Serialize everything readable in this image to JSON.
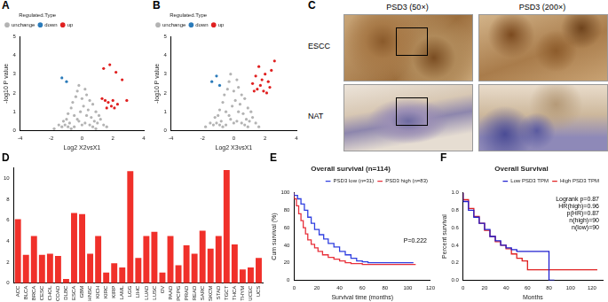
{
  "chart_data": [
    {
      "panel": "A",
      "type": "scatter",
      "x_label": "Log2 X2vsX1",
      "y_label": "-log10 P value",
      "legend": "top-left",
      "legend_title": "Regulated.Type",
      "grid": false,
      "xlim": [
        -4,
        4
      ],
      "xticks": [
        -4,
        -2,
        0,
        2,
        4
      ],
      "ylim": [
        0,
        5
      ],
      "yticks": [
        0,
        1,
        2,
        3,
        4,
        5
      ],
      "series": [
        {
          "name": "unchange",
          "color": "#b3b3b3",
          "x": [
            -1.8,
            -1.5,
            -1.3,
            -1.2,
            -1.0,
            -0.9,
            -0.8,
            -0.7,
            -0.6,
            -0.5,
            -0.4,
            -0.3,
            -0.2,
            -0.1,
            0,
            0.1,
            0.2,
            0.3,
            0.4,
            0.5,
            0.6,
            0.7,
            0.8,
            0.9,
            1.0,
            1.2,
            1.4,
            1.6,
            -0.5,
            -0.2,
            0.2,
            0.5,
            -0.9,
            0.9,
            -0.3,
            0.3,
            0,
            -1.1,
            1.1,
            -0.7,
            0.7
          ],
          "values": [
            0.1,
            0.3,
            0.2,
            0.5,
            0.6,
            0.9,
            0.4,
            1.2,
            1.5,
            0.8,
            1.8,
            2.1,
            2.4,
            1.0,
            0.3,
            1.3,
            2.2,
            1.9,
            1.1,
            1.6,
            0.7,
            1.4,
            0.5,
            1.0,
            0.4,
            0.6,
            0.3,
            0.2,
            0.2,
            0.5,
            0.4,
            0.3,
            0.2,
            0.1,
            0.6,
            0.8,
            1.7,
            0.3,
            0.8,
            0.1,
            0.2
          ]
        },
        {
          "name": "down",
          "color": "#2b7bba",
          "x": [
            -1.3,
            -1.0
          ],
          "values": [
            2.8,
            2.6
          ]
        },
        {
          "name": "up",
          "color": "#e02020",
          "x": [
            1.4,
            1.8,
            2.2,
            2.6,
            1.5,
            1.7,
            2.0,
            2.3,
            1.6,
            1.9,
            2.1,
            1.3,
            2.9
          ],
          "values": [
            3.3,
            3.5,
            3.1,
            2.7,
            1.6,
            1.5,
            1.6,
            1.4,
            1.2,
            1.3,
            1.2,
            1.7,
            1.6
          ]
        }
      ]
    },
    {
      "panel": "B",
      "type": "scatter",
      "x_label": "Log2 X3vsX1",
      "y_label": "-log10 P value",
      "legend": "top-left",
      "legend_title": "Regulated.Type",
      "grid": false,
      "xlim": [
        -4,
        4
      ],
      "xticks": [
        -4,
        -2,
        0,
        2,
        4
      ],
      "ylim": [
        0,
        5
      ],
      "yticks": [
        0,
        1,
        2,
        3,
        4,
        5
      ],
      "series": [
        {
          "name": "unchange",
          "color": "#b3b3b3",
          "x": [
            -1.8,
            -1.5,
            -1.3,
            -1.2,
            -1.0,
            -0.9,
            -0.8,
            -0.7,
            -0.6,
            -0.5,
            -0.4,
            -0.3,
            -0.2,
            -0.1,
            0,
            0.1,
            0.2,
            0.3,
            0.4,
            0.5,
            0.6,
            0.7,
            0.8,
            0.9,
            1.0,
            1.2,
            1.4,
            1.6,
            -0.5,
            -0.2,
            0.2,
            0.5,
            -0.9,
            0.9,
            -0.3,
            0.3,
            0,
            -1.1,
            1.1,
            -0.7,
            0.7
          ],
          "values": [
            0.2,
            0.4,
            0.3,
            0.7,
            0.8,
            1.1,
            0.5,
            1.5,
            1.9,
            1.0,
            2.2,
            2.6,
            3.0,
            1.3,
            0.4,
            1.6,
            2.7,
            2.3,
            1.4,
            1.9,
            0.9,
            1.7,
            0.6,
            1.2,
            0.5,
            0.7,
            0.4,
            0.2,
            0.3,
            0.6,
            0.5,
            0.4,
            0.3,
            0.2,
            0.8,
            1.0,
            2.1,
            0.4,
            1.0,
            0.2,
            0.3
          ]
        },
        {
          "name": "down",
          "color": "#2b7bba",
          "x": [
            -1.4,
            -1.1,
            -0.9
          ],
          "values": [
            2.6,
            2.9,
            2.4
          ]
        },
        {
          "name": "up",
          "color": "#e02020",
          "x": [
            1.2,
            1.4,
            1.6,
            1.8,
            2.0,
            2.2,
            2.4,
            1.5,
            1.7,
            1.9,
            2.1,
            2.3,
            2.6,
            1.3
          ],
          "values": [
            2.5,
            2.9,
            3.4,
            2.7,
            3.0,
            2.6,
            3.2,
            2.2,
            2.4,
            2.1,
            2.0,
            2.3,
            3.7,
            2.1
          ]
        }
      ]
    },
    {
      "panel": "D",
      "type": "bar",
      "color": "#f0302a",
      "grid": false,
      "categories": [
        "ACC",
        "BLCA",
        "BRCA",
        "CESC",
        "CHOL",
        "COAD",
        "DLBC",
        "ESCA",
        "GBM",
        "HNSC",
        "KICH",
        "KIRC",
        "KIRP",
        "LAML",
        "LGG",
        "LIHC",
        "LUAD",
        "LUSC",
        "OV",
        "PAAD",
        "PCPG",
        "PRAD",
        "READ",
        "SARC",
        "SKCM",
        "STAD",
        "TGCT",
        "THCA",
        "THYM",
        "UCEC",
        "UCS"
      ],
      "values": [
        6.1,
        2.7,
        4.5,
        2.7,
        2.8,
        2.6,
        0.4,
        6.7,
        6.6,
        2.8,
        4.5,
        1.0,
        1.9,
        1.5,
        10.7,
        2.4,
        4.5,
        4.9,
        1.0,
        4.5,
        1.7,
        3.6,
        2.8,
        5.0,
        3.3,
        4.5,
        10.8,
        3.7,
        1.3,
        1.5,
        2.4
      ],
      "ylim": [
        0,
        11
      ],
      "yticks": [
        0,
        2,
        4,
        6,
        8,
        10
      ]
    },
    {
      "panel": "E",
      "type": "line",
      "title": "Overall survival (n=114)",
      "x_label": "Survival time (months)",
      "y_label": "Cum survival (%)",
      "legend": "top-right",
      "grid": false,
      "annotations": [
        "P=0.222"
      ],
      "xlim": [
        0,
        120
      ],
      "xticks": [
        0,
        20,
        40,
        60,
        80,
        100,
        120
      ],
      "ylim": [
        0,
        100
      ],
      "yticks": [
        0,
        20,
        40,
        60,
        80,
        100
      ],
      "series": [
        {
          "name": "PSD3 low (n=31)",
          "color": "#2f3fe0",
          "x": [
            0,
            3,
            6,
            9,
            12,
            15,
            18,
            22,
            26,
            30,
            35,
            40,
            45,
            50,
            55,
            60,
            65,
            70,
            80,
            90,
            100,
            105
          ],
          "values": [
            100,
            97,
            93,
            87,
            80,
            72,
            65,
            58,
            52,
            47,
            42,
            38,
            33,
            29,
            25,
            22,
            21,
            20,
            20,
            20,
            20,
            20
          ]
        },
        {
          "name": "PSD3 high (n=83)",
          "color": "#e8303a",
          "x": [
            0,
            2,
            4,
            6,
            8,
            10,
            12,
            15,
            18,
            21,
            25,
            30,
            35,
            40,
            45,
            50,
            55,
            60,
            70,
            80,
            90,
            100,
            107
          ],
          "values": [
            100,
            93,
            85,
            76,
            68,
            60,
            53,
            46,
            41,
            37,
            33,
            29,
            26,
            24,
            22,
            20,
            19,
            19,
            18,
            18,
            18,
            18,
            18
          ]
        }
      ]
    },
    {
      "panel": "F",
      "type": "line",
      "title": "Overall Survival",
      "x_label": "Months",
      "y_label": "Percent survival",
      "legend": "top-right",
      "grid": false,
      "annotations": [
        "Logrank p=0.87",
        "HR(high)=0.96",
        "p(HR)=0.87",
        "n(high)=90",
        "n(low)=90"
      ],
      "xlim": [
        0,
        130
      ],
      "xticks": [
        0,
        20,
        40,
        60,
        80,
        100,
        120
      ],
      "ylim": [
        0,
        1
      ],
      "yticks": [
        {
          "value": 0,
          "label": "0.0"
        },
        0.2,
        0.4,
        0.6,
        0.8,
        {
          "value": 1,
          "label": "1.0"
        }
      ],
      "series": [
        {
          "name": "Low PSD3 TPM",
          "color": "#2020d0",
          "x": [
            0,
            5,
            10,
            15,
            20,
            25,
            30,
            35,
            40,
            45,
            50,
            55,
            60,
            70,
            80,
            85
          ],
          "values": [
            1.0,
            0.9,
            0.8,
            0.72,
            0.65,
            0.58,
            0.5,
            0.45,
            0.4,
            0.37,
            0.35,
            0.33,
            0.33,
            0.33,
            0.33,
            0
          ]
        },
        {
          "name": "High PSD3 TPM",
          "color": "#e02020",
          "x": [
            0,
            5,
            10,
            15,
            20,
            25,
            30,
            35,
            40,
            45,
            50,
            55,
            60,
            70,
            80,
            90,
            100,
            110,
            125
          ],
          "values": [
            1.0,
            0.92,
            0.82,
            0.73,
            0.65,
            0.57,
            0.5,
            0.44,
            0.4,
            0.36,
            0.3,
            0.25,
            0.22,
            0.12,
            0.12,
            0.12,
            0.12,
            0.12,
            0.12
          ]
        }
      ]
    }
  ],
  "image_panel": {
    "panel": "C",
    "columns": [
      "PSD3 (50×)",
      "PSD3 (200×)"
    ],
    "rows": [
      "ESCC",
      "NAT"
    ]
  }
}
